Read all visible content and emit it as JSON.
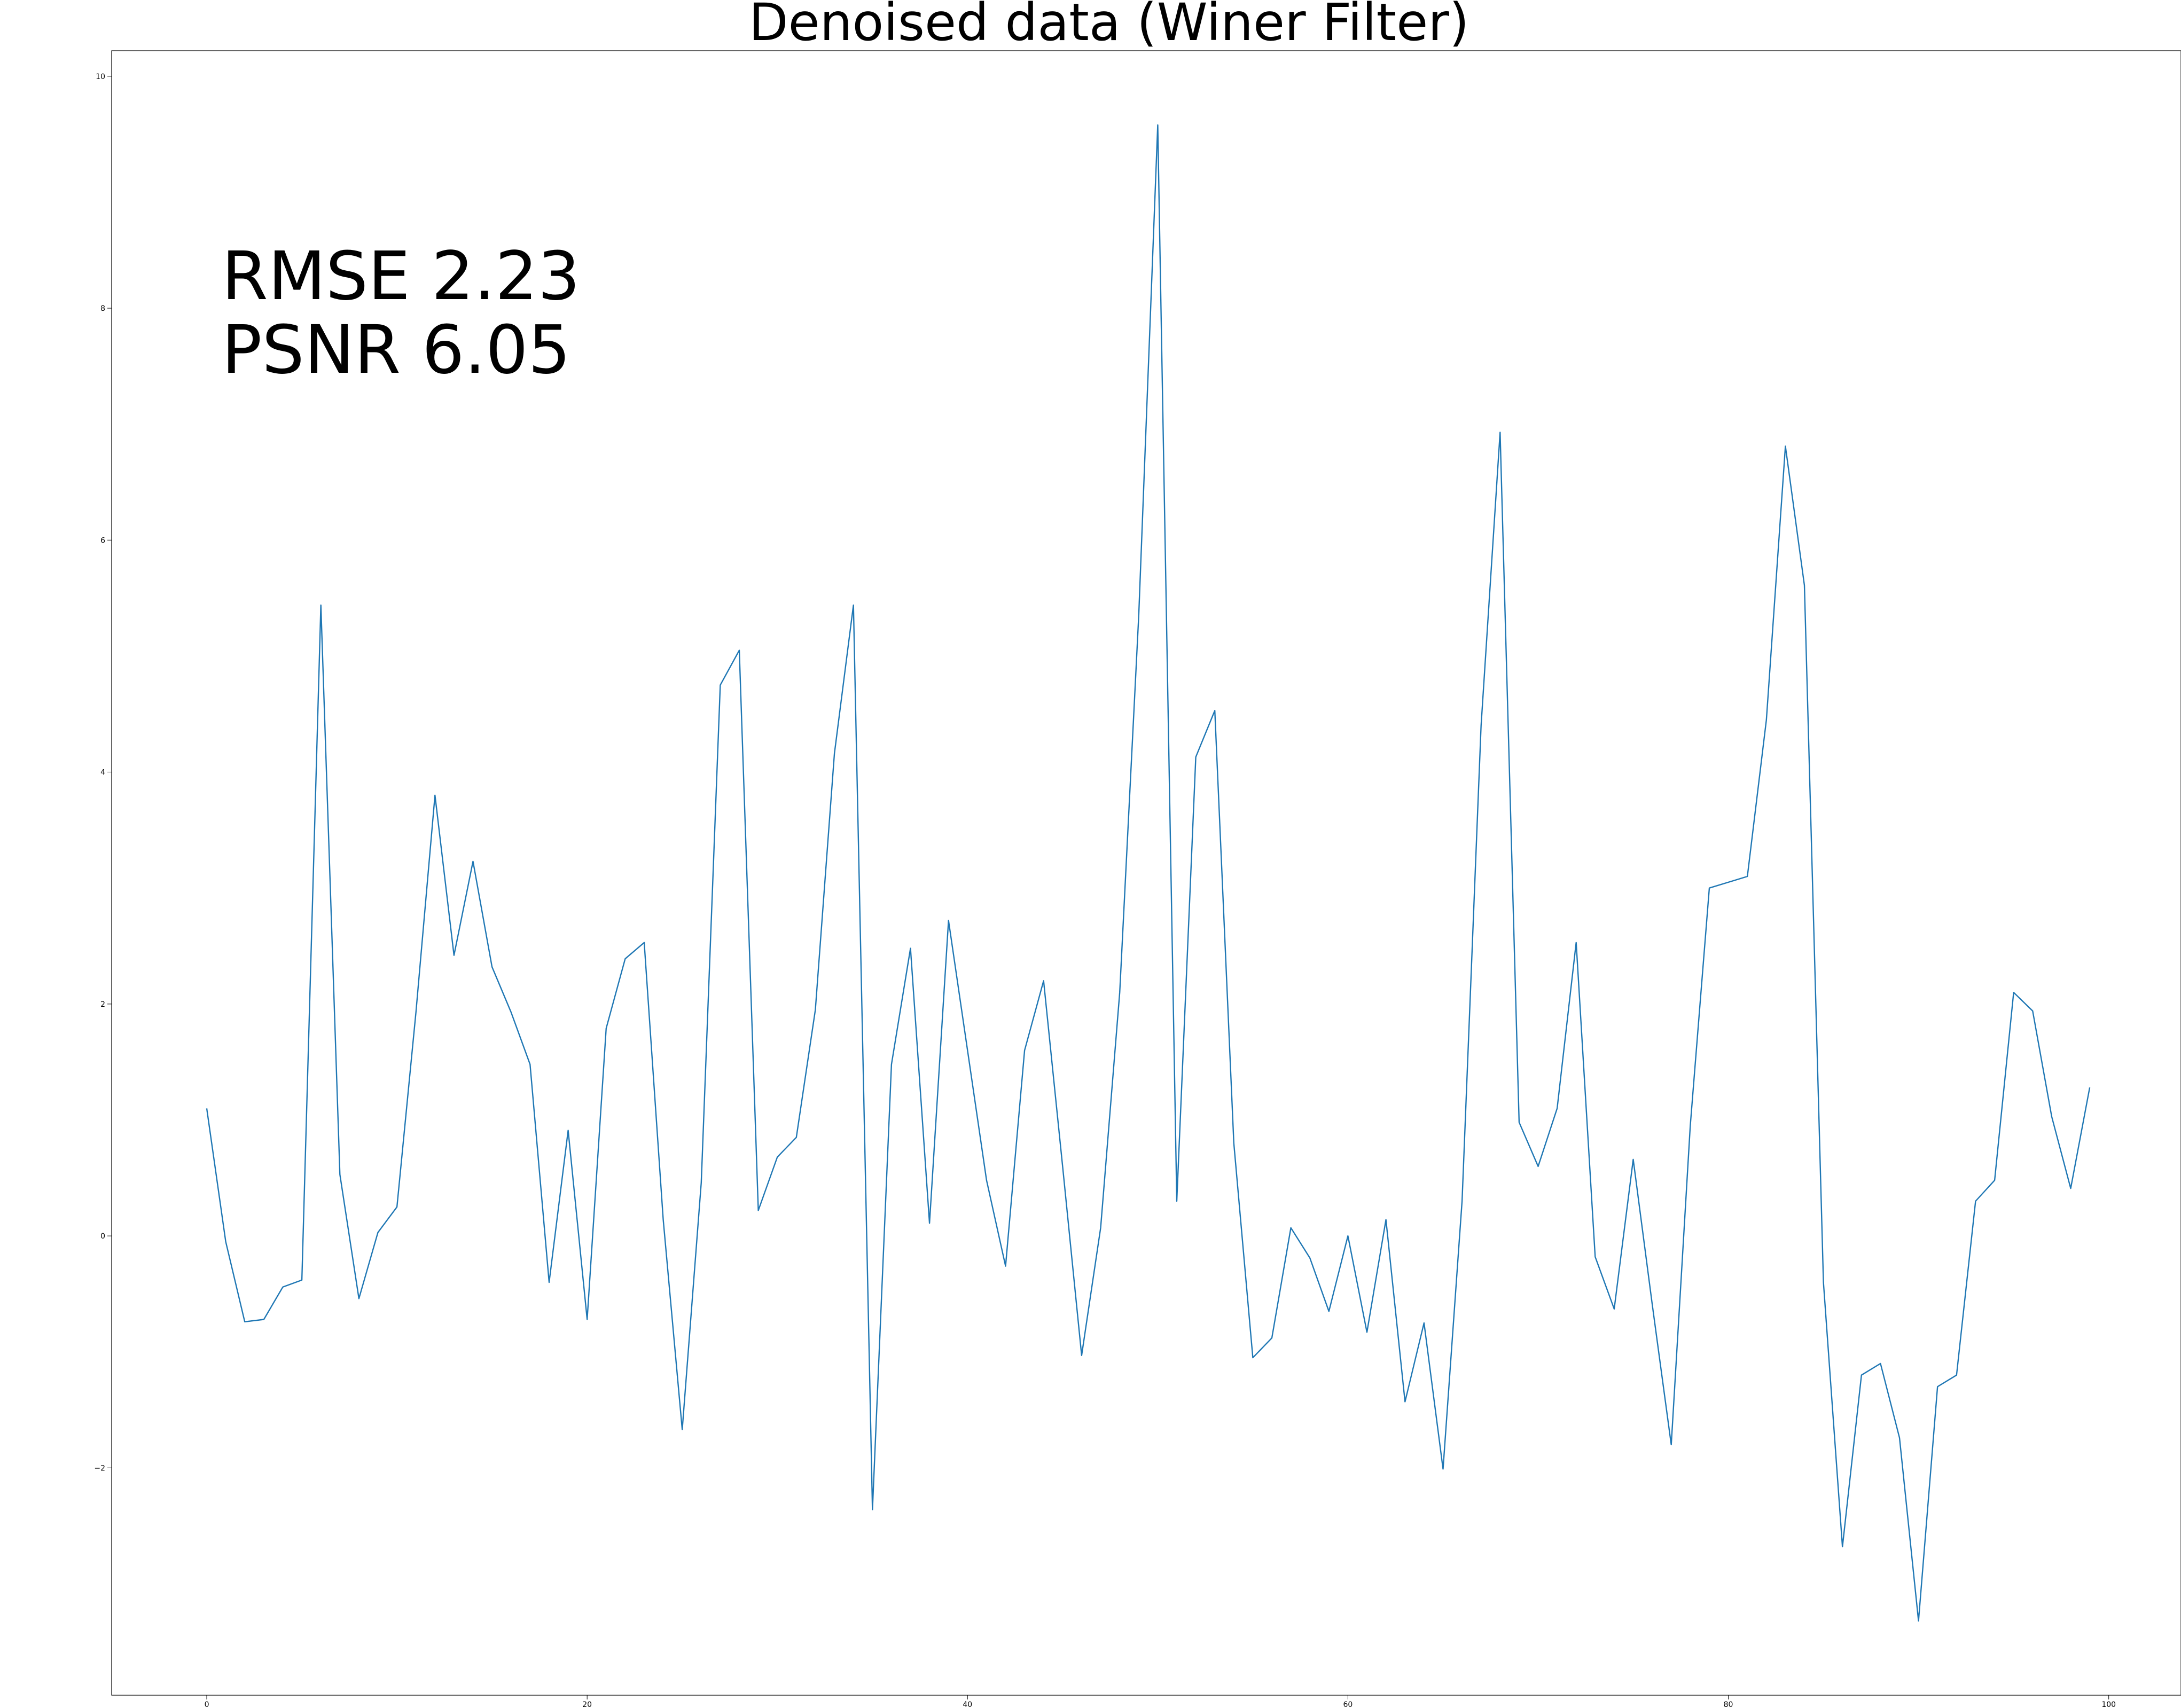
{
  "chart_data": {
    "type": "line",
    "title": "Denoised data (Winer Filter)",
    "xlabel": "",
    "ylabel": "",
    "xlim": [
      -5,
      103.8
    ],
    "ylim": [
      -3.96,
      10.22
    ],
    "x_ticks": [
      0,
      20,
      40,
      60,
      80,
      100
    ],
    "x_tick_labels": [
      "0",
      "20",
      "40",
      "60",
      "80",
      "100"
    ],
    "y_ticks": [
      -2,
      0,
      2,
      4,
      6,
      8,
      10
    ],
    "y_tick_labels": [
      "−2",
      "0",
      "2",
      "4",
      "6",
      "8",
      "10"
    ],
    "grid": false,
    "legend": "none",
    "annotations": [
      "RMSE 2.23",
      "PSNR 6.05"
    ],
    "series": [
      {
        "color": "#1f77b4",
        "x": [
          0,
          1,
          2,
          3,
          4,
          5,
          6,
          7,
          8,
          9,
          10,
          11,
          12,
          13,
          14,
          15,
          16,
          17,
          18,
          19,
          20,
          21,
          22,
          23,
          24,
          25,
          26,
          27,
          28,
          29,
          30,
          31,
          32,
          33,
          34,
          35,
          36,
          37,
          38,
          39,
          40,
          41,
          42,
          43,
          44,
          45,
          46,
          47,
          48,
          49,
          50,
          51,
          52,
          53,
          54,
          55,
          56,
          57,
          58,
          59,
          60,
          61,
          62,
          63,
          64,
          65,
          66,
          67,
          68,
          69,
          70,
          71,
          72,
          73,
          74,
          75,
          76,
          77,
          78,
          79,
          80,
          81,
          82,
          83,
          84,
          85,
          86,
          87,
          88,
          89,
          90,
          91,
          92,
          93,
          94,
          95,
          96,
          97,
          98,
          99
        ],
        "y": [
          1.1,
          -0.05,
          -0.74,
          -0.72,
          -0.44,
          -0.38,
          5.44,
          0.53,
          -0.54,
          0.03,
          0.25,
          1.93,
          3.8,
          2.42,
          3.23,
          2.32,
          1.93,
          1.48,
          -0.4,
          0.91,
          -0.72,
          1.79,
          2.39,
          2.53,
          0.14,
          -1.67,
          0.46,
          4.75,
          5.05,
          0.22,
          0.68,
          0.85,
          1.95,
          4.16,
          5.44,
          -2.36,
          1.48,
          2.48,
          0.11,
          2.72,
          1.6,
          0.48,
          -0.26,
          1.6,
          2.2,
          0.6,
          -1.03,
          0.07,
          2.1,
          5.35,
          9.58,
          0.3,
          4.13,
          4.53,
          0.8,
          -1.05,
          -0.88,
          0.07,
          -0.19,
          -0.65,
          0.0,
          -0.83,
          0.14,
          -1.43,
          -0.75,
          -2.01,
          0.3,
          4.4,
          6.93,
          0.98,
          0.6,
          1.1,
          2.53,
          -0.18,
          -0.63,
          0.66,
          -0.59,
          -1.8,
          0.95,
          3.0,
          3.05,
          3.1,
          4.45,
          6.81,
          5.61,
          -0.4,
          -2.68,
          -1.2,
          -1.1,
          -1.74,
          -3.32,
          -1.3,
          -1.2,
          0.3,
          0.48,
          2.1,
          1.94,
          1.03,
          0.41,
          1.28
        ]
      }
    ]
  }
}
